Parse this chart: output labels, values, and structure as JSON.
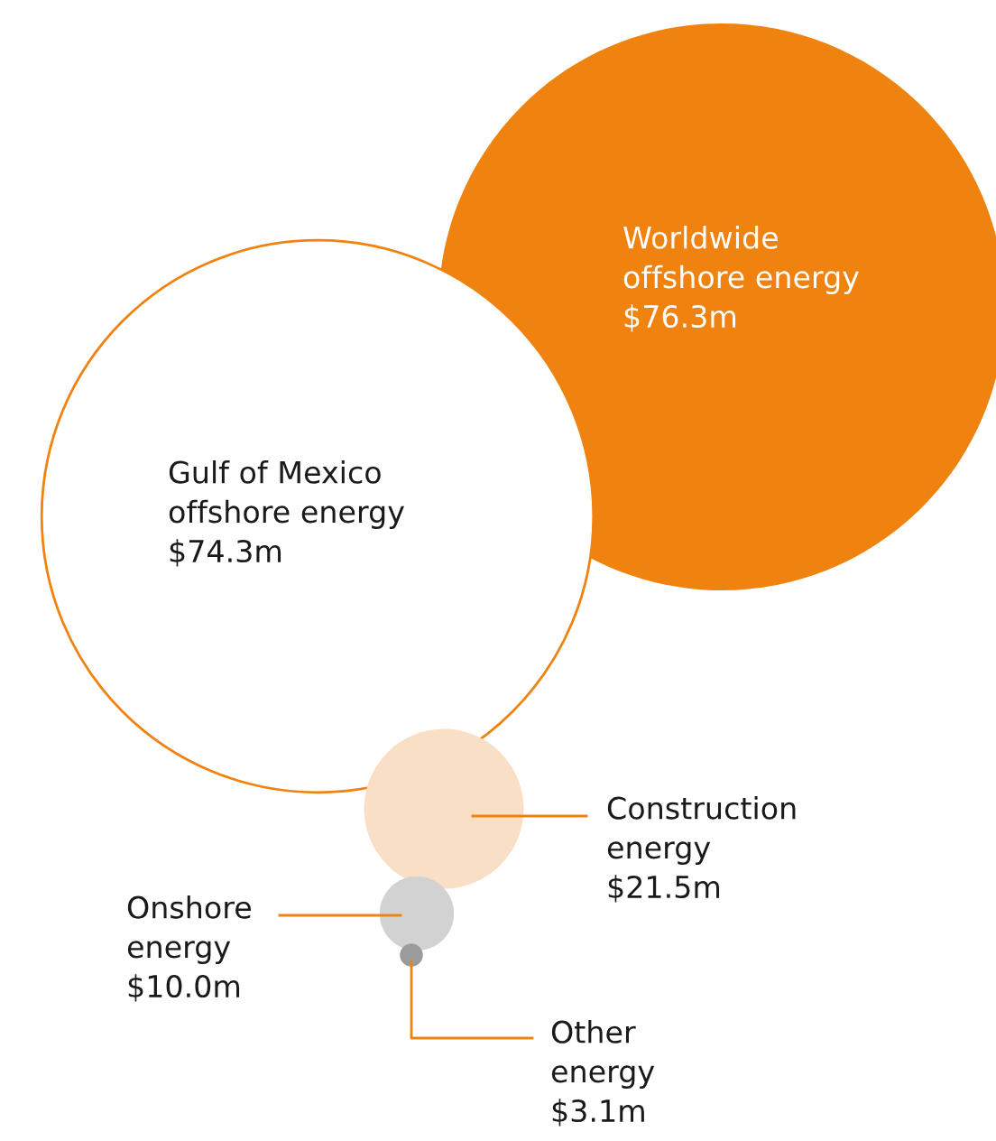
{
  "chart_data": {
    "type": "other",
    "categories": [
      "Worldwide\noffshore energy",
      "Gulf of Mexico\noffshore energy",
      "Construction\nenergy",
      "Onshore\nenergy",
      "Other\nenergy"
    ],
    "values": [
      76.3,
      74.3,
      21.5,
      10.0,
      3.1
    ],
    "value_labels": [
      "$76.3m",
      "$74.3m",
      "$21.5m",
      "$10.0m",
      "$3.1m"
    ],
    "colors": [
      "#f0820f",
      "#ffffff",
      "#f9dfc5",
      "#d2d2d2",
      "#9b9b9b"
    ]
  }
}
